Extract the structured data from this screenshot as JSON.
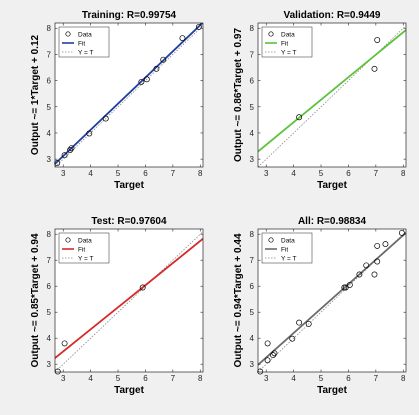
{
  "chart_data": [
    {
      "type": "scatter",
      "title": "Training: R=0.99754",
      "xlabel": "Target",
      "ylabel": "Output ~= 1*Target + 0.12",
      "xlim": [
        2.7,
        8.1
      ],
      "ylim": [
        2.7,
        8.2
      ],
      "xticks": [
        3,
        4,
        5,
        6,
        7,
        8
      ],
      "yticks": [
        3,
        4,
        5,
        6,
        7,
        8
      ],
      "fit_color": "#1f3f9f",
      "fit": {
        "slope": 1.0,
        "intercept": 0.12
      },
      "legend": [
        "Data",
        "Fit",
        "Y = T"
      ],
      "legend_position": "top-left",
      "grid": false,
      "points": {
        "x": [
          2.78,
          3.05,
          3.25,
          3.3,
          3.95,
          4.55,
          5.85,
          6.05,
          6.4,
          6.65,
          7.35,
          7.95
        ],
        "y": [
          2.85,
          3.15,
          3.35,
          3.42,
          3.98,
          4.55,
          5.95,
          6.05,
          6.45,
          6.8,
          7.62,
          8.05
        ]
      }
    },
    {
      "type": "scatter",
      "title": "Validation: R=0.9449",
      "xlabel": "Target",
      "ylabel": "Output ~= 0.86*Target + 0.97",
      "xlim": [
        2.7,
        8.1
      ],
      "ylim": [
        2.7,
        8.2
      ],
      "xticks": [
        3,
        4,
        5,
        6,
        7,
        8
      ],
      "yticks": [
        3,
        4,
        5,
        6,
        7,
        8
      ],
      "fit_color": "#5cc23a",
      "fit": {
        "slope": 0.86,
        "intercept": 0.97
      },
      "legend": [
        "Data",
        "Fit",
        "Y = T"
      ],
      "legend_position": "top-left",
      "grid": false,
      "points": {
        "x": [
          4.2,
          6.95,
          7.05
        ],
        "y": [
          4.6,
          6.45,
          7.55
        ]
      }
    },
    {
      "type": "scatter",
      "title": "Test: R=0.97604",
      "xlabel": "Target",
      "ylabel": "Output ~= 0.85*Target + 0.94",
      "xlim": [
        2.7,
        8.1
      ],
      "ylim": [
        2.7,
        8.2
      ],
      "xticks": [
        3,
        4,
        5,
        6,
        7,
        8
      ],
      "yticks": [
        3,
        4,
        5,
        6,
        7,
        8
      ],
      "fit_color": "#d42b2b",
      "fit": {
        "slope": 0.85,
        "intercept": 0.94
      },
      "legend": [
        "Data",
        "Fit",
        "Y = T"
      ],
      "legend_position": "top-left",
      "grid": false,
      "points": {
        "x": [
          2.8,
          3.05,
          5.9
        ],
        "y": [
          2.72,
          3.8,
          5.95
        ]
      }
    },
    {
      "type": "scatter",
      "title": "All: R=0.98834",
      "xlabel": "Target",
      "ylabel": "Output ~= 0.94*Target + 0.44",
      "xlim": [
        2.7,
        8.1
      ],
      "ylim": [
        2.7,
        8.2
      ],
      "xticks": [
        3,
        4,
        5,
        6,
        7,
        8
      ],
      "yticks": [
        3,
        4,
        5,
        6,
        7,
        8
      ],
      "fit_color": "#6b6b6b",
      "fit": {
        "slope": 0.94,
        "intercept": 0.44
      },
      "legend": [
        "Data",
        "Fit",
        "Y = T"
      ],
      "legend_position": "top-left",
      "grid": false,
      "points": {
        "x": [
          2.78,
          3.05,
          3.05,
          3.25,
          3.3,
          3.95,
          4.2,
          4.55,
          5.85,
          5.9,
          6.05,
          6.4,
          6.65,
          6.95,
          7.05,
          7.05,
          7.35,
          7.95
        ],
        "y": [
          2.72,
          3.15,
          3.8,
          3.35,
          3.42,
          3.98,
          4.6,
          4.55,
          5.95,
          5.95,
          6.05,
          6.45,
          6.8,
          6.45,
          6.95,
          7.55,
          7.62,
          8.05
        ]
      }
    }
  ]
}
